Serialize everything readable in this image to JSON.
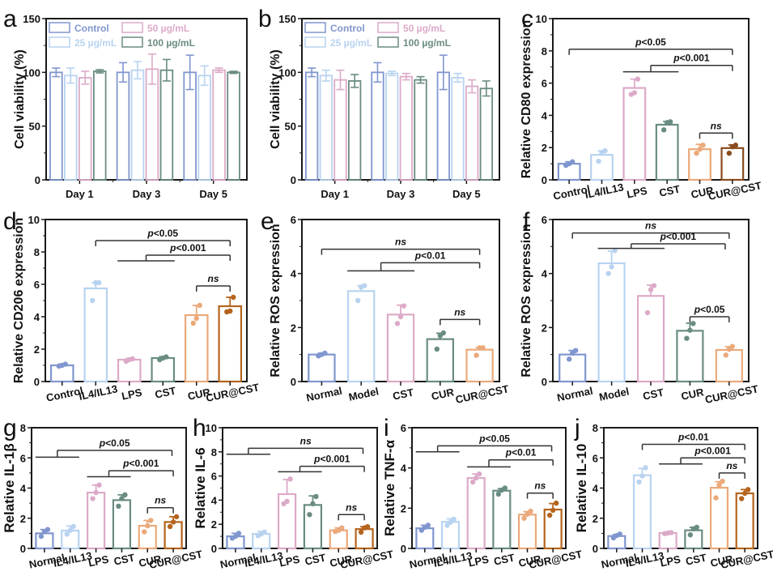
{
  "colors": {
    "Control": "#8096cf",
    "25 µg/mL": "#b8d3f0",
    "50 µg/mL": "#dcaac8",
    "100 µg/mL": "#6a8c83",
    "Normal": "#8096cf",
    "IL4/IL13": "#b8d3f0",
    "Model": "#b8d3f0",
    "LPS": "#dcaac8",
    "CST": "#6a8c83",
    "CUR": "#eba97a",
    "CUR@CST": "#b4641c",
    "CUR@CST_c": "#8a4b1e",
    "axis": "#1a1a1a"
  },
  "chart_data": [
    {
      "id": "a",
      "panel_label": "a",
      "type": "bar",
      "grouped": true,
      "categories": [
        "Day 1",
        "Day 3",
        "Day 5"
      ],
      "series": [
        {
          "name": "Control",
          "values": [
            100,
            100,
            100
          ],
          "errors": [
            4,
            9,
            16
          ]
        },
        {
          "name": "25 µg/mL",
          "values": [
            97,
            102,
            97
          ],
          "errors": [
            7,
            8,
            9
          ]
        },
        {
          "name": "50 µg/mL",
          "values": [
            95,
            103,
            102
          ],
          "errors": [
            6,
            14,
            2
          ]
        },
        {
          "name": "100 µg/mL",
          "values": [
            101,
            102,
            100
          ],
          "errors": [
            1.5,
            10,
            1
          ]
        }
      ],
      "ylabel": "Cell viability (%)",
      "ylim": [
        0,
        150
      ],
      "yticks": [
        0,
        50,
        100,
        150
      ],
      "legend": {
        "position": "top-left",
        "columns": 2,
        "order": [
          "Control",
          "50 µg/mL",
          "25 µg/mL",
          "100 µg/mL"
        ]
      }
    },
    {
      "id": "b",
      "panel_label": "b",
      "type": "bar",
      "grouped": true,
      "categories": [
        "Day 1",
        "Day 3",
        "Day 5"
      ],
      "series": [
        {
          "name": "Control",
          "values": [
            100,
            100,
            100
          ],
          "errors": [
            4,
            9,
            16
          ]
        },
        {
          "name": "25 µg/mL",
          "values": [
            97,
            99,
            95
          ],
          "errors": [
            5,
            2,
            4
          ]
        },
        {
          "name": "50 µg/mL",
          "values": [
            93,
            96,
            87
          ],
          "errors": [
            9,
            3,
            6
          ]
        },
        {
          "name": "100 µg/mL",
          "values": [
            92,
            93,
            85
          ],
          "errors": [
            6,
            3,
            7
          ]
        }
      ],
      "ylabel": "Cell viability (%)",
      "ylim": [
        0,
        150
      ],
      "yticks": [
        0,
        50,
        100,
        150
      ],
      "legend": {
        "position": "top-left",
        "columns": 2,
        "order": [
          "Control",
          "50 µg/mL",
          "25 µg/mL",
          "100 µg/mL"
        ]
      }
    },
    {
      "id": "c",
      "panel_label": "c",
      "type": "bar",
      "categories": [
        "Control",
        "IL4/IL13",
        "LPS",
        "CST",
        "CUR",
        "CUR@CST"
      ],
      "values": [
        1.0,
        1.55,
        5.7,
        3.42,
        1.9,
        1.97
      ],
      "errors": [
        0.12,
        0.25,
        0.55,
        0.2,
        0.3,
        0.2
      ],
      "points": [
        [
          0.9,
          1.0,
          1.12
        ],
        [
          1.15,
          1.7,
          1.8
        ],
        [
          5.3,
          5.4,
          6.25
        ],
        [
          3.1,
          3.55,
          3.6
        ],
        [
          1.65,
          1.9,
          2.15
        ],
        [
          1.65,
          2.05,
          2.15
        ]
      ],
      "ylabel": "Relative CD80 expression",
      "ylim": [
        0,
        10
      ],
      "yticks": [
        0,
        2,
        4,
        6,
        8,
        10
      ],
      "annotations": [
        {
          "text": "p<0.05",
          "from": 0,
          "to": 5,
          "level": 8.1
        },
        {
          "text": "p<0.001",
          "group": [
            2,
            3
          ],
          "to": 5,
          "level": 7.1,
          "group_level": 6.7
        },
        {
          "text": "ns",
          "from": 4,
          "to": 5,
          "level": 2.9
        }
      ]
    },
    {
      "id": "d",
      "panel_label": "d",
      "type": "bar",
      "categories": [
        "Control",
        "IL4/IL13",
        "LPS",
        "CST",
        "CUR",
        "CUR@CST"
      ],
      "values": [
        1.0,
        5.75,
        1.35,
        1.45,
        4.1,
        4.65
      ],
      "errors": [
        0.08,
        0.35,
        0.08,
        0.08,
        0.6,
        0.55
      ],
      "points": [
        [
          0.95,
          1.0,
          1.07
        ],
        [
          5.0,
          6.1,
          6.1
        ],
        [
          1.25,
          1.35,
          1.4
        ],
        [
          1.35,
          1.45,
          1.52
        ],
        [
          3.6,
          3.9,
          4.7
        ],
        [
          4.3,
          4.35,
          5.2
        ]
      ],
      "ylabel": "Relative CD206 expression",
      "ylim": [
        0,
        10
      ],
      "yticks": [
        0,
        2,
        4,
        6,
        8,
        10
      ],
      "annotations": [
        {
          "text": "p<0.05",
          "from": 1,
          "to": 5,
          "level": 8.7
        },
        {
          "text": "p<0.001",
          "group": [
            2,
            3
          ],
          "to": 5,
          "level": 7.8,
          "group_level": 7.45
        },
        {
          "text": "ns",
          "from": 4,
          "to": 5,
          "level": 5.9
        }
      ]
    },
    {
      "id": "e",
      "panel_label": "e",
      "type": "bar",
      "categories": [
        "Normal",
        "Model",
        "CST",
        "CUR",
        "CUR@CST"
      ],
      "values": [
        1.0,
        3.35,
        2.48,
        1.57,
        1.18
      ],
      "errors": [
        0.05,
        0.2,
        0.35,
        0.22,
        0.08
      ],
      "points": [
        [
          0.95,
          1.0,
          1.05
        ],
        [
          3.0,
          3.5,
          3.55
        ],
        [
          2.15,
          2.4,
          2.8
        ],
        [
          1.2,
          1.7,
          1.8
        ],
        [
          0.97,
          1.25,
          1.25
        ]
      ],
      "ylabel": "Relative ROS expression",
      "ylim": [
        0,
        6
      ],
      "yticks": [
        0,
        2,
        4,
        6
      ],
      "annotations": [
        {
          "text": "ns",
          "from": 0,
          "to": 4,
          "level": 4.9
        },
        {
          "text": "p<0.01",
          "group": [
            1,
            2
          ],
          "to": 4,
          "level": 4.4,
          "group_level": 4.1
        },
        {
          "text": "ns",
          "from": 3,
          "to": 4,
          "level": 2.3
        }
      ]
    },
    {
      "id": "f",
      "panel_label": "f",
      "type": "bar",
      "categories": [
        "Normal",
        "Model",
        "CST",
        "CUR",
        "CUR@CST"
      ],
      "values": [
        1.0,
        4.38,
        3.17,
        1.88,
        1.17
      ],
      "errors": [
        0.15,
        0.45,
        0.4,
        0.28,
        0.12
      ],
      "points": [
        [
          0.83,
          1.05,
          1.15
        ],
        [
          4.0,
          4.25,
          4.85
        ],
        [
          2.55,
          3.4,
          3.55
        ],
        [
          1.6,
          1.9,
          2.15
        ],
        [
          0.98,
          1.2,
          1.3
        ]
      ],
      "ylabel": "Relative ROS expression",
      "ylim": [
        0,
        6
      ],
      "yticks": [
        0,
        2,
        4,
        6
      ],
      "annotations": [
        {
          "text": "ns",
          "from": 0,
          "to": 4,
          "level": 5.5
        },
        {
          "text": "p<0.001",
          "group": [
            1,
            2
          ],
          "to": 3.9,
          "level": 5.1,
          "group_level": 4.93
        },
        {
          "text": "p<0.05",
          "from": 3,
          "to": 4,
          "level": 2.4
        }
      ]
    },
    {
      "id": "g",
      "panel_label": "g",
      "type": "bar",
      "categories": [
        "Normal",
        "IL4/IL13",
        "LPS",
        "CST",
        "CUR",
        "CUR@CST"
      ],
      "values": [
        1.0,
        1.18,
        3.7,
        3.2,
        1.5,
        1.75
      ],
      "errors": [
        0.25,
        0.3,
        0.5,
        0.35,
        0.35,
        0.35
      ],
      "points": [
        [
          0.8,
          1.1,
          1.25
        ],
        [
          0.95,
          1.2,
          1.45
        ],
        [
          3.3,
          3.7,
          4.2
        ],
        [
          2.8,
          3.3,
          3.55
        ],
        [
          1.1,
          1.5,
          1.85
        ],
        [
          1.45,
          1.75,
          2.1
        ]
      ],
      "ylabel": "Relative IL-1β",
      "ylim": [
        0,
        8
      ],
      "yticks": [
        0,
        2,
        4,
        6,
        8
      ],
      "annotations": [
        {
          "text": "p<0.05",
          "group": [
            0,
            1
          ],
          "to": 4.95,
          "level": 6.5,
          "group_level": 6.05
        },
        {
          "text": "p<0.001",
          "group": [
            2,
            3
          ],
          "to": 5,
          "level": 5.15,
          "group_level": 4.75
        },
        {
          "text": "ns",
          "from": 4,
          "to": 5,
          "level": 2.7
        }
      ]
    },
    {
      "id": "h",
      "panel_label": "h",
      "type": "bar",
      "categories": [
        "Normal",
        "IL4/IL13",
        "LPS",
        "CST",
        "CUR",
        "CUR@CST"
      ],
      "values": [
        1.0,
        1.2,
        4.5,
        3.6,
        1.5,
        1.6
      ],
      "errors": [
        0.25,
        0.2,
        1.2,
        0.75,
        0.2,
        0.2
      ],
      "points": [
        [
          0.85,
          1.0,
          1.25
        ],
        [
          1.05,
          1.2,
          1.35
        ],
        [
          3.7,
          3.9,
          5.75
        ],
        [
          2.8,
          3.7,
          4.3
        ],
        [
          1.4,
          1.5,
          1.7
        ],
        [
          1.35,
          1.7,
          1.8
        ]
      ],
      "ylabel": "Relative IL-6",
      "ylim": [
        0,
        10
      ],
      "yticks": [
        0,
        2,
        4,
        6,
        8,
        10
      ],
      "annotations": [
        {
          "text": "ns",
          "group": [
            0,
            1
          ],
          "to": 4.95,
          "level": 8.3,
          "group_level": 7.8
        },
        {
          "text": "p<0.001",
          "group": [
            2,
            3
          ],
          "to": 5,
          "level": 6.8,
          "group_level": 6.35
        },
        {
          "text": "ns",
          "from": 4,
          "to": 5,
          "level": 2.8
        }
      ]
    },
    {
      "id": "i",
      "panel_label": "i",
      "type": "bar",
      "categories": [
        "Normal",
        "IL4/IL13",
        "LPS",
        "CST",
        "CUR",
        "CUR@CST"
      ],
      "values": [
        1.0,
        1.32,
        3.5,
        2.87,
        1.68,
        1.93
      ],
      "errors": [
        0.15,
        0.15,
        0.2,
        0.1,
        0.15,
        0.3
      ],
      "points": [
        [
          0.9,
          1.05,
          1.15
        ],
        [
          1.15,
          1.3,
          1.45
        ],
        [
          3.3,
          3.5,
          3.7
        ],
        [
          2.7,
          2.9,
          3.0
        ],
        [
          1.5,
          1.7,
          1.85
        ],
        [
          1.65,
          1.9,
          2.25
        ]
      ],
      "ylabel": "Relative TNF-α",
      "ylim": [
        0,
        6
      ],
      "yticks": [
        0,
        2,
        4,
        6
      ],
      "annotations": [
        {
          "text": "p<0.05",
          "group": [
            0,
            1
          ],
          "to": 4.95,
          "level": 5.1,
          "group_level": 4.8
        },
        {
          "text": "p<0.01",
          "group": [
            2,
            3
          ],
          "to": 5,
          "level": 4.4,
          "group_level": 4.05
        },
        {
          "text": "ns",
          "from": 4,
          "to": 5,
          "level": 2.75
        }
      ]
    },
    {
      "id": "j",
      "panel_label": "j",
      "type": "bar",
      "categories": [
        "Normal",
        "IL4/IL13",
        "LPS",
        "CST",
        "CUR",
        "CUR@CST"
      ],
      "values": [
        0.82,
        4.85,
        1.02,
        1.2,
        4.02,
        3.65
      ],
      "errors": [
        0.1,
        0.45,
        0.05,
        0.2,
        0.4,
        0.25
      ],
      "points": [
        [
          0.7,
          0.85,
          0.95
        ],
        [
          4.4,
          4.8,
          5.35
        ],
        [
          0.98,
          1.02,
          1.05
        ],
        [
          0.9,
          1.3,
          1.4
        ],
        [
          3.35,
          4.2,
          4.45
        ],
        [
          3.3,
          3.65,
          3.9
        ]
      ],
      "ylabel": "Relative IL-10",
      "ylim": [
        0,
        8
      ],
      "yticks": [
        0,
        2,
        4,
        6,
        8
      ],
      "annotations": [
        {
          "text": "p<0.01",
          "from": 1,
          "to": 5,
          "level": 6.9
        },
        {
          "text": "p<0.001",
          "group": [
            2,
            3
          ],
          "to": 5,
          "level": 6.0,
          "group_level": 5.6
        },
        {
          "text": "ns",
          "from": 4,
          "to": 5,
          "level": 5.0
        }
      ]
    }
  ]
}
